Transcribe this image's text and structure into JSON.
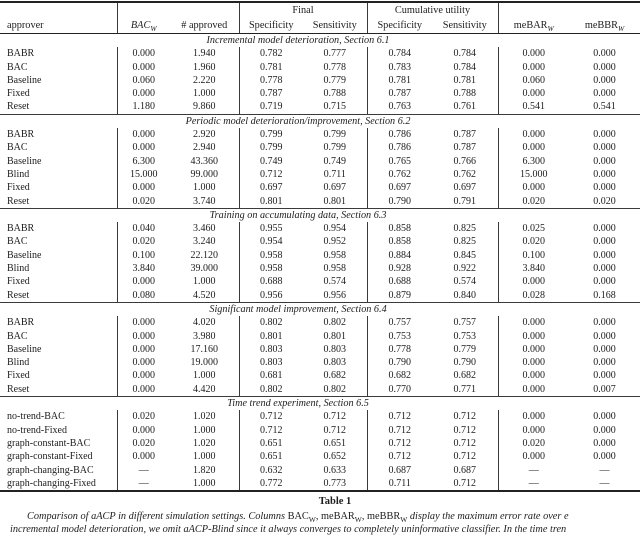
{
  "header": {
    "final_group": "Final",
    "cumulative_group": "Cumulative utility",
    "approver": "approver",
    "bac": {
      "base": "BAC",
      "sub": "W"
    },
    "approved": "# approved",
    "final_specificity": "Specificity",
    "final_sensitivity": "Sensitivity",
    "cum_specificity": "Specificity",
    "cum_sensitivity": "Sensitivity",
    "mebar": {
      "base": "meBAR",
      "sub": "W"
    },
    "mebbr": {
      "base": "meBBR",
      "sub": "W"
    }
  },
  "sections": [
    {
      "title": "Incremental model deterioration, Section 6.1",
      "rows": [
        {
          "approver": "BABR",
          "values": [
            "0.000",
            "1.940",
            "0.782",
            "0.777",
            "0.784",
            "0.784",
            "0.000",
            "0.000"
          ]
        },
        {
          "approver": "BAC",
          "values": [
            "0.000",
            "1.960",
            "0.781",
            "0.778",
            "0.783",
            "0.784",
            "0.000",
            "0.000"
          ]
        },
        {
          "approver": "Baseline",
          "values": [
            "0.060",
            "2.220",
            "0.778",
            "0.779",
            "0.781",
            "0.781",
            "0.060",
            "0.000"
          ]
        },
        {
          "approver": "Fixed",
          "values": [
            "0.000",
            "1.000",
            "0.787",
            "0.788",
            "0.787",
            "0.788",
            "0.000",
            "0.000"
          ]
        },
        {
          "approver": "Reset",
          "values": [
            "1.180",
            "9.860",
            "0.719",
            "0.715",
            "0.763",
            "0.761",
            "0.541",
            "0.541"
          ]
        }
      ]
    },
    {
      "title": "Periodic model deterioration/improvement, Section 6.2",
      "rows": [
        {
          "approver": "BABR",
          "values": [
            "0.000",
            "2.920",
            "0.799",
            "0.799",
            "0.786",
            "0.787",
            "0.000",
            "0.000"
          ]
        },
        {
          "approver": "BAC",
          "values": [
            "0.000",
            "2.940",
            "0.799",
            "0.799",
            "0.786",
            "0.787",
            "0.000",
            "0.000"
          ]
        },
        {
          "approver": "Baseline",
          "values": [
            "6.300",
            "43.360",
            "0.749",
            "0.749",
            "0.765",
            "0.766",
            "6.300",
            "0.000"
          ]
        },
        {
          "approver": "Blind",
          "values": [
            "15.000",
            "99.000",
            "0.712",
            "0.711",
            "0.762",
            "0.762",
            "15.000",
            "0.000"
          ]
        },
        {
          "approver": "Fixed",
          "values": [
            "0.000",
            "1.000",
            "0.697",
            "0.697",
            "0.697",
            "0.697",
            "0.000",
            "0.000"
          ]
        },
        {
          "approver": "Reset",
          "values": [
            "0.020",
            "3.740",
            "0.801",
            "0.801",
            "0.790",
            "0.791",
            "0.020",
            "0.020"
          ]
        }
      ]
    },
    {
      "title": "Training on accumulating data, Section 6.3",
      "rows": [
        {
          "approver": "BABR",
          "values": [
            "0.040",
            "3.460",
            "0.955",
            "0.954",
            "0.858",
            "0.825",
            "0.025",
            "0.000"
          ]
        },
        {
          "approver": "BAC",
          "values": [
            "0.020",
            "3.240",
            "0.954",
            "0.952",
            "0.858",
            "0.825",
            "0.020",
            "0.000"
          ]
        },
        {
          "approver": "Baseline",
          "values": [
            "0.100",
            "22.120",
            "0.958",
            "0.958",
            "0.884",
            "0.845",
            "0.100",
            "0.000"
          ]
        },
        {
          "approver": "Blind",
          "values": [
            "3.840",
            "39.000",
            "0.958",
            "0.958",
            "0.928",
            "0.922",
            "3.840",
            "0.000"
          ]
        },
        {
          "approver": "Fixed",
          "values": [
            "0.000",
            "1.000",
            "0.688",
            "0.574",
            "0.688",
            "0.574",
            "0.000",
            "0.000"
          ]
        },
        {
          "approver": "Reset",
          "values": [
            "0.080",
            "4.520",
            "0.956",
            "0.956",
            "0.879",
            "0.840",
            "0.028",
            "0.168"
          ]
        }
      ]
    },
    {
      "title": "Significant model improvement, Section 6.4",
      "rows": [
        {
          "approver": "BABR",
          "values": [
            "0.000",
            "4.020",
            "0.802",
            "0.802",
            "0.757",
            "0.757",
            "0.000",
            "0.000"
          ]
        },
        {
          "approver": "BAC",
          "values": [
            "0.000",
            "3.980",
            "0.801",
            "0.801",
            "0.753",
            "0.753",
            "0.000",
            "0.000"
          ]
        },
        {
          "approver": "Baseline",
          "values": [
            "0.000",
            "17.160",
            "0.803",
            "0.803",
            "0.778",
            "0.779",
            "0.000",
            "0.000"
          ]
        },
        {
          "approver": "Blind",
          "values": [
            "0.000",
            "19.000",
            "0.803",
            "0.803",
            "0.790",
            "0.790",
            "0.000",
            "0.000"
          ]
        },
        {
          "approver": "Fixed",
          "values": [
            "0.000",
            "1.000",
            "0.681",
            "0.682",
            "0.682",
            "0.682",
            "0.000",
            "0.000"
          ]
        },
        {
          "approver": "Reset",
          "values": [
            "0.000",
            "4.420",
            "0.802",
            "0.802",
            "0.770",
            "0.771",
            "0.000",
            "0.007"
          ]
        }
      ]
    },
    {
      "title": "Time trend experiment, Section 6.5",
      "rows": [
        {
          "approver": "no-trend-BAC",
          "values": [
            "0.020",
            "1.020",
            "0.712",
            "0.712",
            "0.712",
            "0.712",
            "0.000",
            "0.000"
          ]
        },
        {
          "approver": "no-trend-Fixed",
          "values": [
            "0.000",
            "1.000",
            "0.712",
            "0.712",
            "0.712",
            "0.712",
            "0.000",
            "0.000"
          ]
        },
        {
          "approver": "graph-constant-BAC",
          "values": [
            "0.020",
            "1.020",
            "0.651",
            "0.651",
            "0.712",
            "0.712",
            "0.020",
            "0.000"
          ]
        },
        {
          "approver": "graph-constant-Fixed",
          "values": [
            "0.000",
            "1.000",
            "0.651",
            "0.652",
            "0.712",
            "0.712",
            "0.000",
            "0.000"
          ]
        },
        {
          "approver": "graph-changing-BAC",
          "values": [
            "—",
            "1.820",
            "0.632",
            "0.633",
            "0.687",
            "0.687",
            "—",
            "—"
          ]
        },
        {
          "approver": "graph-changing-Fixed",
          "values": [
            "—",
            "1.000",
            "0.772",
            "0.773",
            "0.711",
            "0.712",
            "—",
            "—"
          ]
        }
      ]
    }
  ],
  "caption": {
    "label": "Table 1",
    "line1_parts": [
      {
        "t": "Comparison of aACP in different simulation settings. Columns "
      },
      {
        "t": "BAC",
        "roman": true
      },
      {
        "t": "W",
        "sub": true,
        "roman": true
      },
      {
        "t": ", ",
        "roman": true
      },
      {
        "t": "meBAR",
        "roman": true
      },
      {
        "t": "W",
        "sub": true,
        "roman": true
      },
      {
        "t": ", ",
        "roman": true
      },
      {
        "t": "meBBR",
        "roman": true
      },
      {
        "t": "W",
        "sub": true,
        "roman": true
      },
      {
        "t": " display the maximum error rate over e"
      }
    ],
    "line2": "incremental model deterioration, we omit aACP-Blind since it always converges to completely uninformative classifier. In the time tren"
  }
}
